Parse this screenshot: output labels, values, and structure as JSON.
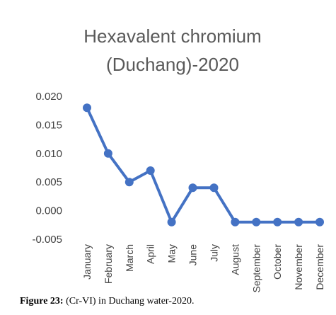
{
  "chart_data": {
    "type": "line",
    "title_lines": [
      "Hexavalent chromium",
      "(Duchang)-2020"
    ],
    "categories": [
      "January",
      "February",
      "March",
      "April",
      "May",
      "June",
      "July",
      "August",
      "September",
      "October",
      "November",
      "December"
    ],
    "values": [
      0.018,
      0.01,
      0.005,
      0.007,
      -0.002,
      0.004,
      0.004,
      -0.002,
      -0.002,
      -0.002,
      -0.002,
      -0.002
    ],
    "yticks": [
      "0.020",
      "0.015",
      "0.010",
      "0.005",
      "0.000",
      "-0.005"
    ],
    "ylim": [
      -0.005,
      0.02
    ],
    "grid": false,
    "legend": "none",
    "color": "#4472C4"
  },
  "caption": {
    "label": "Figure 23:",
    "text": " (Cr-VI) in Duchang water-2020."
  }
}
